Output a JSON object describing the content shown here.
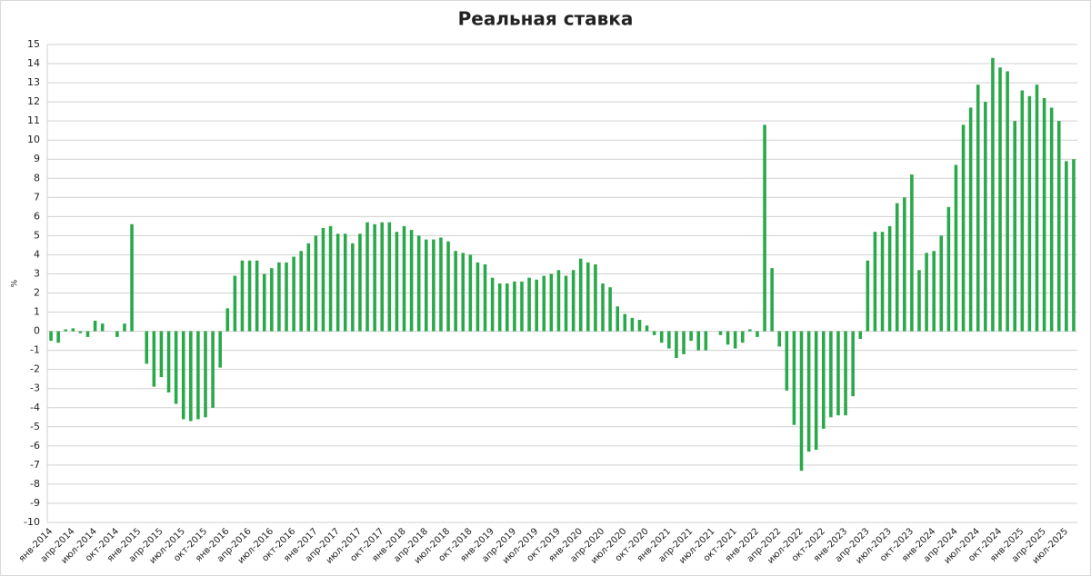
{
  "chart_data": {
    "type": "bar",
    "title": "Реальная ставка",
    "y_label": "%",
    "color": "#2aa84a",
    "grid": true,
    "ylim": [
      -10,
      15
    ],
    "yticks": [
      -10,
      -9,
      -8,
      -7,
      -6,
      -5,
      -4,
      -3,
      -2,
      -1,
      0,
      1,
      2,
      3,
      4,
      5,
      6,
      7,
      8,
      9,
      10,
      11,
      12,
      13,
      14,
      15
    ],
    "categories": [
      "янв-2014",
      null,
      null,
      "апр-2014",
      null,
      null,
      "июл-2014",
      null,
      null,
      "окт-2014",
      null,
      null,
      "янв-2015",
      null,
      null,
      "апр-2015",
      null,
      null,
      "июл-2015",
      null,
      null,
      "окт-2015",
      null,
      null,
      "янв-2016",
      null,
      null,
      "апр-2016",
      null,
      null,
      "июл-2016",
      null,
      null,
      "окт-2016",
      null,
      null,
      "янв-2017",
      null,
      null,
      "апр-2017",
      null,
      null,
      "июл-2017",
      null,
      null,
      "окт-2017",
      null,
      null,
      "янв-2018",
      null,
      null,
      "апр-2018",
      null,
      null,
      "июл-2018",
      null,
      null,
      "окт-2018",
      null,
      null,
      "янв-2019",
      null,
      null,
      "апр-2019",
      null,
      null,
      "июл-2019",
      null,
      null,
      "окт-2019",
      null,
      null,
      "янв-2020",
      null,
      null,
      "апр-2020",
      null,
      null,
      "июл-2020",
      null,
      null,
      "окт-2020",
      null,
      null,
      "янв-2021",
      null,
      null,
      "апр-2021",
      null,
      null,
      "июл-2021",
      null,
      null,
      "окт-2021",
      null,
      null,
      "янв-2022",
      null,
      null,
      "апр-2022",
      null,
      null,
      "июл-2022",
      null,
      null,
      "окт-2022",
      null,
      null,
      "янв-2023",
      null,
      null,
      "апр-2023",
      null,
      null,
      "июл-2023",
      null,
      null,
      "окт-2023",
      null,
      null,
      "янв-2024",
      null,
      null,
      "апр-2024",
      null,
      null,
      "июл-2024",
      null,
      null,
      "окт-2024",
      null,
      null,
      "янв-2025",
      null,
      null,
      "апр-2025",
      null,
      null,
      "июл-2025",
      null
    ],
    "values": [
      -0.5,
      -0.6,
      0.1,
      0.15,
      -0.1,
      -0.3,
      0.55,
      0.4,
      0,
      -0.3,
      0.4,
      5.6,
      0,
      -1.7,
      -2.9,
      -2.4,
      -3.2,
      -3.8,
      -4.6,
      -4.7,
      -4.6,
      -4.5,
      -4.0,
      -1.9,
      1.2,
      2.9,
      3.7,
      3.7,
      3.7,
      3.0,
      3.3,
      3.6,
      3.6,
      3.9,
      4.2,
      4.6,
      5.0,
      5.4,
      5.5,
      5.1,
      5.1,
      4.6,
      5.1,
      5.7,
      5.6,
      5.7,
      5.7,
      5.2,
      5.5,
      5.3,
      5.0,
      4.8,
      4.8,
      4.9,
      4.7,
      4.2,
      4.1,
      4.0,
      3.6,
      3.5,
      2.8,
      2.5,
      2.5,
      2.6,
      2.6,
      2.8,
      2.7,
      2.9,
      3.0,
      3.2,
      2.9,
      3.2,
      3.8,
      3.6,
      3.5,
      2.5,
      2.3,
      1.3,
      0.9,
      0.7,
      0.6,
      0.3,
      -0.2,
      -0.6,
      -0.9,
      -1.4,
      -1.2,
      -0.5,
      -1.0,
      -1.0,
      0,
      -0.2,
      -0.7,
      -0.9,
      -0.6,
      0.1,
      -0.3,
      10.8,
      3.3,
      -0.8,
      -3.1,
      -4.9,
      -7.3,
      -6.3,
      -6.2,
      -5.1,
      -4.5,
      -4.4,
      -4.4,
      -3.4,
      -0.4,
      3.7,
      5.2,
      5.2,
      5.5,
      6.7,
      7.0,
      8.2,
      3.2,
      4.1,
      4.2,
      5.0,
      6.5,
      8.7,
      10.8,
      11.7,
      12.9,
      12.0,
      14.3,
      13.8,
      13.6,
      11.0,
      12.6,
      12.3,
      12.9,
      12.2,
      11.7,
      11.0,
      8.9,
      9.0
    ]
  }
}
